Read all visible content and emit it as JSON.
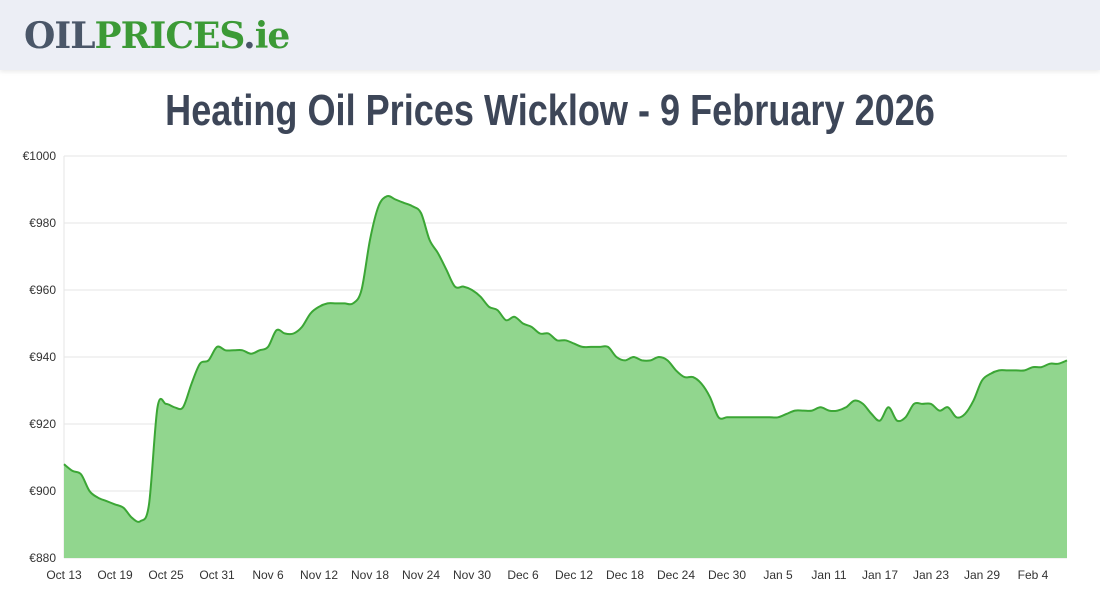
{
  "header": {
    "logo_part1": "OIL",
    "logo_part2": "PRICES",
    "logo_part3": ".",
    "logo_part4": "ie"
  },
  "page_title": "Heating Oil Prices Wicklow - 9 February 2026",
  "colors": {
    "line": "#3ba635",
    "fill": "#91d68e",
    "grid": "#e6e6e6",
    "header_bg": "#eceef5",
    "logo_dark": "#4a5668",
    "logo_green": "#3c9a36",
    "title": "#3d4658"
  },
  "chart_data": {
    "type": "area",
    "title": "",
    "xlabel": "",
    "ylabel": "",
    "ylim": [
      880,
      1000
    ],
    "y_ticks": [
      880,
      900,
      920,
      940,
      960,
      980,
      1000
    ],
    "y_tick_labels": [
      "€880",
      "€900",
      "€920",
      "€940",
      "€960",
      "€980",
      "€1000"
    ],
    "x_tick_labels": [
      "Oct 13",
      "Oct 19",
      "Oct 25",
      "Oct 31",
      "Nov 6",
      "Nov 12",
      "Nov 18",
      "Nov 24",
      "Nov 30",
      "Dec 6",
      "Dec 12",
      "Dec 18",
      "Dec 24",
      "Dec 30",
      "Jan 5",
      "Jan 11",
      "Jan 17",
      "Jan 23",
      "Jan 29",
      "Feb 4"
    ],
    "x_tick_day_index": [
      0,
      6,
      12,
      18,
      24,
      30,
      36,
      42,
      48,
      54,
      60,
      66,
      72,
      78,
      84,
      90,
      96,
      102,
      108,
      114
    ],
    "grid": true,
    "legend": "none",
    "series": [
      {
        "values": [
          [
            0,
            908
          ],
          [
            1,
            906
          ],
          [
            2,
            905
          ],
          [
            3,
            900
          ],
          [
            4,
            898
          ],
          [
            5,
            897
          ],
          [
            6,
            896
          ],
          [
            7,
            895
          ],
          [
            8,
            892
          ],
          [
            9,
            891
          ],
          [
            10,
            896
          ],
          [
            11,
            925
          ],
          [
            12,
            926
          ],
          [
            13,
            925
          ],
          [
            14,
            925
          ],
          [
            15,
            932
          ],
          [
            16,
            938
          ],
          [
            17,
            939
          ],
          [
            18,
            943
          ],
          [
            19,
            942
          ],
          [
            20,
            942
          ],
          [
            21,
            942
          ],
          [
            22,
            941
          ],
          [
            23,
            942
          ],
          [
            24,
            943
          ],
          [
            25,
            948
          ],
          [
            26,
            947
          ],
          [
            27,
            947
          ],
          [
            28,
            949
          ],
          [
            29,
            953
          ],
          [
            30,
            955
          ],
          [
            31,
            956
          ],
          [
            32,
            956
          ],
          [
            33,
            956
          ],
          [
            34,
            956
          ],
          [
            35,
            960
          ],
          [
            36,
            975
          ],
          [
            37,
            985
          ],
          [
            38,
            988
          ],
          [
            39,
            987
          ],
          [
            40,
            986
          ],
          [
            41,
            985
          ],
          [
            42,
            983
          ],
          [
            43,
            975
          ],
          [
            44,
            971
          ],
          [
            45,
            966
          ],
          [
            46,
            961
          ],
          [
            47,
            961
          ],
          [
            48,
            960
          ],
          [
            49,
            958
          ],
          [
            50,
            955
          ],
          [
            51,
            954
          ],
          [
            52,
            951
          ],
          [
            53,
            952
          ],
          [
            54,
            950
          ],
          [
            55,
            949
          ],
          [
            56,
            947
          ],
          [
            57,
            947
          ],
          [
            58,
            945
          ],
          [
            59,
            945
          ],
          [
            60,
            944
          ],
          [
            61,
            943
          ],
          [
            62,
            943
          ],
          [
            63,
            943
          ],
          [
            64,
            943
          ],
          [
            65,
            940
          ],
          [
            66,
            939
          ],
          [
            67,
            940
          ],
          [
            68,
            939
          ],
          [
            69,
            939
          ],
          [
            70,
            940
          ],
          [
            71,
            939
          ],
          [
            72,
            936
          ],
          [
            73,
            934
          ],
          [
            74,
            934
          ],
          [
            75,
            932
          ],
          [
            76,
            928
          ],
          [
            77,
            922
          ],
          [
            78,
            922
          ],
          [
            79,
            922
          ],
          [
            80,
            922
          ],
          [
            81,
            922
          ],
          [
            82,
            922
          ],
          [
            83,
            922
          ],
          [
            84,
            922
          ],
          [
            85,
            923
          ],
          [
            86,
            924
          ],
          [
            87,
            924
          ],
          [
            88,
            924
          ],
          [
            89,
            925
          ],
          [
            90,
            924
          ],
          [
            91,
            924
          ],
          [
            92,
            925
          ],
          [
            93,
            927
          ],
          [
            94,
            926
          ],
          [
            95,
            923
          ],
          [
            96,
            921
          ],
          [
            97,
            925
          ],
          [
            98,
            921
          ],
          [
            99,
            922
          ],
          [
            100,
            926
          ],
          [
            101,
            926
          ],
          [
            102,
            926
          ],
          [
            103,
            924
          ],
          [
            104,
            925
          ],
          [
            105,
            922
          ],
          [
            106,
            923
          ],
          [
            107,
            927
          ],
          [
            108,
            933
          ],
          [
            109,
            935
          ],
          [
            110,
            936
          ],
          [
            111,
            936
          ],
          [
            112,
            936
          ],
          [
            113,
            936
          ],
          [
            114,
            937
          ],
          [
            115,
            937
          ],
          [
            116,
            938
          ],
          [
            117,
            938
          ],
          [
            118,
            939
          ]
        ]
      }
    ]
  }
}
